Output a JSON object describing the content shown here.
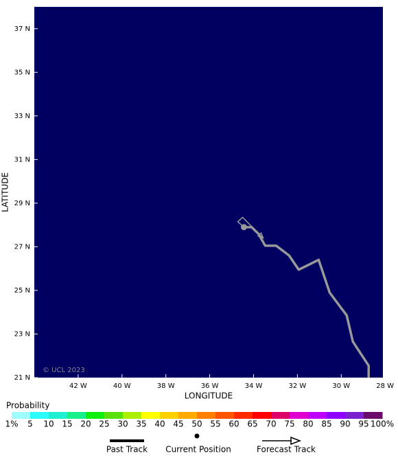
{
  "chart_data": {
    "type": "map",
    "xlabel": "LONGITUDE",
    "ylabel": "LATITUDE",
    "xlim": [
      -44,
      -28.1
    ],
    "ylim": [
      21,
      38
    ],
    "xticks": [
      {
        "value": -42,
        "label": "42 W"
      },
      {
        "value": -40,
        "label": "40 W"
      },
      {
        "value": -38,
        "label": "38 W"
      },
      {
        "value": -36,
        "label": "36 W"
      },
      {
        "value": -34,
        "label": "34 W"
      },
      {
        "value": -32,
        "label": "32 W"
      },
      {
        "value": -30,
        "label": "30 W"
      },
      {
        "value": -28,
        "label": "28 W"
      }
    ],
    "yticks": [
      {
        "value": 21,
        "label": "21 N"
      },
      {
        "value": 23,
        "label": "23 N"
      },
      {
        "value": 25,
        "label": "25 N"
      },
      {
        "value": 27,
        "label": "27 N"
      },
      {
        "value": 29,
        "label": "29 N"
      },
      {
        "value": 31,
        "label": "31 N"
      },
      {
        "value": 33,
        "label": "33 N"
      },
      {
        "value": 35,
        "label": "35 N"
      },
      {
        "value": 37,
        "label": "37 N"
      }
    ],
    "background": "#000060",
    "copyright": "© UCL 2023",
    "series": [
      {
        "name": "Past Track",
        "color": "#999999",
        "x": [
          -28.75,
          -28.75,
          -29.47,
          -29.75,
          -30.53,
          -31.03,
          -31.94,
          -32.38,
          -32.97,
          -33.47,
          -33.78,
          -34.09,
          -34.44
        ],
        "y": [
          21.0,
          21.55,
          22.65,
          23.85,
          24.9,
          26.4,
          25.95,
          26.6,
          27.05,
          27.05,
          27.6,
          27.9,
          27.9
        ]
      },
      {
        "name": "Current Position",
        "color": "#999999",
        "x": [
          -34.44
        ],
        "y": [
          27.9
        ]
      },
      {
        "name": "Forecast Track",
        "color": "#999999",
        "x": [
          -34.44,
          -34.72,
          -34.5,
          -33.56
        ],
        "y": [
          27.9,
          28.15,
          28.35,
          27.4
        ]
      }
    ],
    "colorbar": {
      "title": "Probability",
      "ticks": [
        {
          "value": 1,
          "label": "1%"
        },
        5,
        10,
        15,
        20,
        25,
        30,
        35,
        40,
        45,
        50,
        55,
        60,
        65,
        70,
        75,
        80,
        85,
        90,
        95,
        {
          "value": 100,
          "label": "100%"
        }
      ],
      "colors": [
        "#9ffcff",
        "#2bfcfc",
        "#1ff0d2",
        "#19f08c",
        "#10f010",
        "#5ce00a",
        "#aaf000",
        "#ffff00",
        "#ffd000",
        "#ffaa00",
        "#ff8000",
        "#ff5500",
        "#ff2a00",
        "#ff0000",
        "#dd0066",
        "#e000d0",
        "#c000ff",
        "#9000ff",
        "#7a20d0",
        "#6a0a6a"
      ]
    }
  }
}
